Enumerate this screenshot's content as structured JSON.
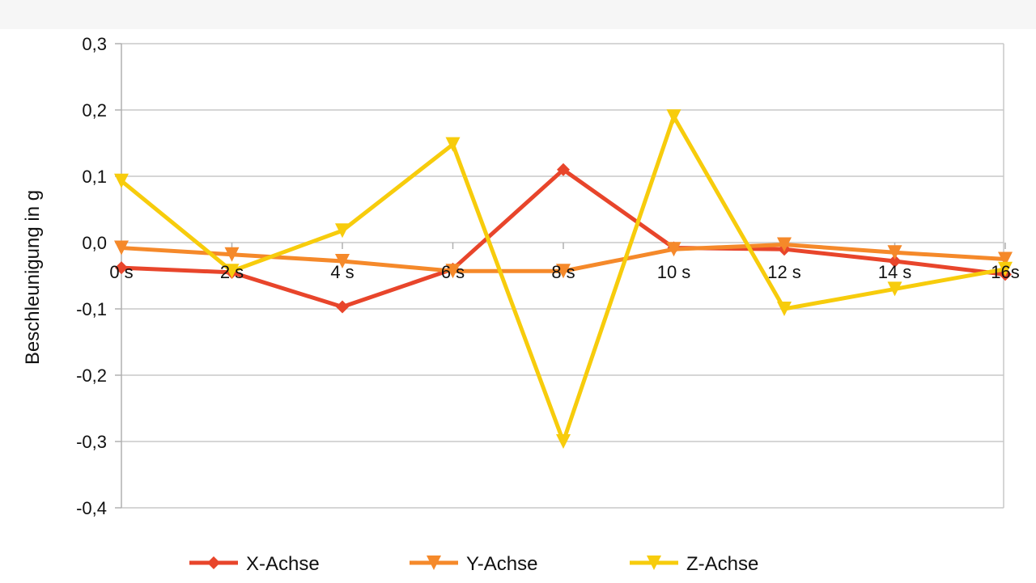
{
  "chart_data": {
    "type": "line",
    "ylabel": "Beschleunigung in g",
    "xlabel": "",
    "categories": [
      "0 s",
      "2 s",
      "4 s",
      "6 s",
      "8 s",
      "10 s",
      "12 s",
      "14 s",
      "16s"
    ],
    "y_ticks": [
      "0,3",
      "0,2",
      "0,1",
      "0,0",
      "-0,1",
      "-0,2",
      "-0,3",
      "-0,4"
    ],
    "ylim": [
      -0.4,
      0.3
    ],
    "grid": true,
    "legend_position": "bottom",
    "series": [
      {
        "name": "X-Achse",
        "marker": "diamond",
        "color": "#e8452b",
        "values": [
          -0.038,
          -0.045,
          -0.097,
          -0.04,
          0.11,
          -0.008,
          -0.01,
          -0.028,
          -0.048
        ]
      },
      {
        "name": "Y-Achse",
        "marker": "triangle-down",
        "color": "#f5892a",
        "values": [
          -0.008,
          -0.018,
          -0.028,
          -0.043,
          -0.043,
          -0.01,
          -0.003,
          -0.015,
          -0.025
        ]
      },
      {
        "name": "Z-Achse",
        "marker": "triangle-down",
        "color": "#f7cc0c",
        "values": [
          0.093,
          -0.043,
          0.018,
          0.148,
          -0.3,
          0.19,
          -0.1,
          -0.07,
          -0.04
        ]
      }
    ]
  }
}
